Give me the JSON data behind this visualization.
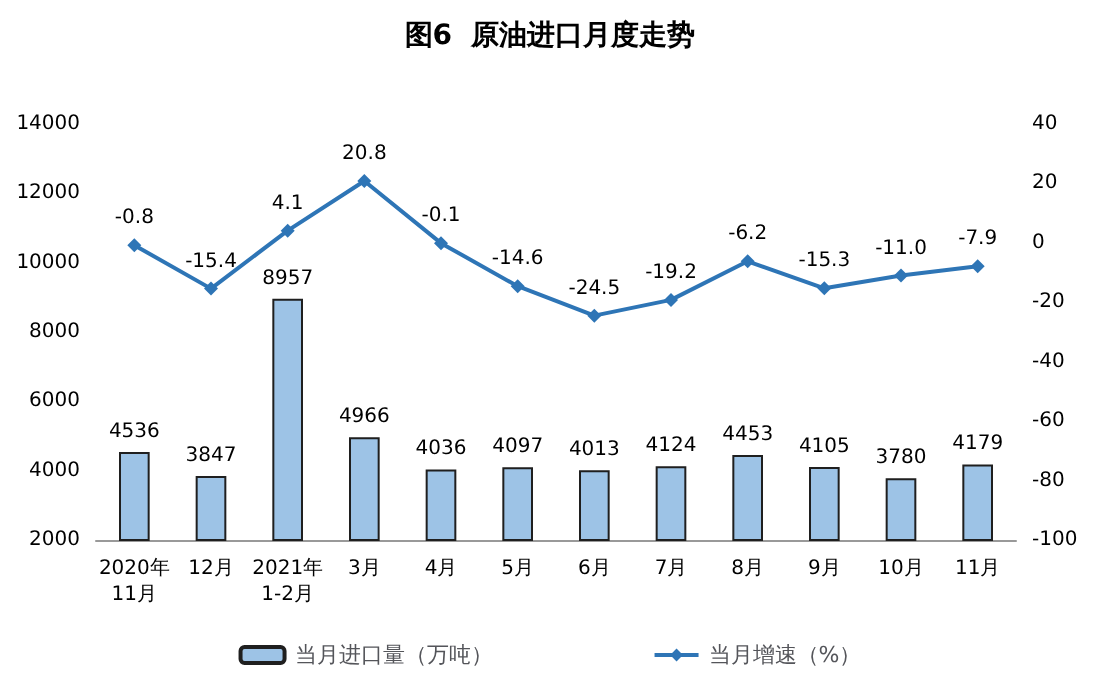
{
  "chart_data": {
    "type": "bar",
    "title": "图6  原油进口月度走势",
    "categories": [
      "2020年\n11月",
      "12月",
      "2021年\n1-2月",
      "3月",
      "4月",
      "5月",
      "6月",
      "7月",
      "8月",
      "9月",
      "10月",
      "11月"
    ],
    "series": [
      {
        "name": "当月进口量（万吨）",
        "color": "#9dc3e6",
        "values": [
          4536,
          3847,
          8957,
          4966,
          4036,
          4097,
          4013,
          4124,
          4453,
          4105,
          3780,
          4179
        ]
      },
      {
        "name": "当月增速（%）",
        "type": "line",
        "axis": "y2",
        "color": "#2e75b6",
        "values": [
          -0.8,
          -15.4,
          4.1,
          20.8,
          -0.1,
          -14.6,
          -24.5,
          -19.2,
          -6.2,
          -15.3,
          -11.0,
          -7.9
        ],
        "value_labels": [
          "-0.8",
          "-15.4",
          "4.1",
          "20.8",
          "-0.1",
          "-14.6",
          "-24.5",
          "-19.2",
          "-6.2",
          "-15.3",
          "-11.0",
          "-7.9"
        ]
      }
    ],
    "ylim": [
      2000,
      14000
    ],
    "yticks": [
      2000,
      4000,
      6000,
      8000,
      10000,
      12000,
      14000
    ],
    "y2lim": [
      -100,
      40
    ],
    "y2ticks": [
      -100,
      -80,
      -60,
      -40,
      -20,
      0,
      20,
      40
    ],
    "data_labels": true,
    "legend": "bottom",
    "marker": "diamond",
    "line_style": "solid"
  }
}
